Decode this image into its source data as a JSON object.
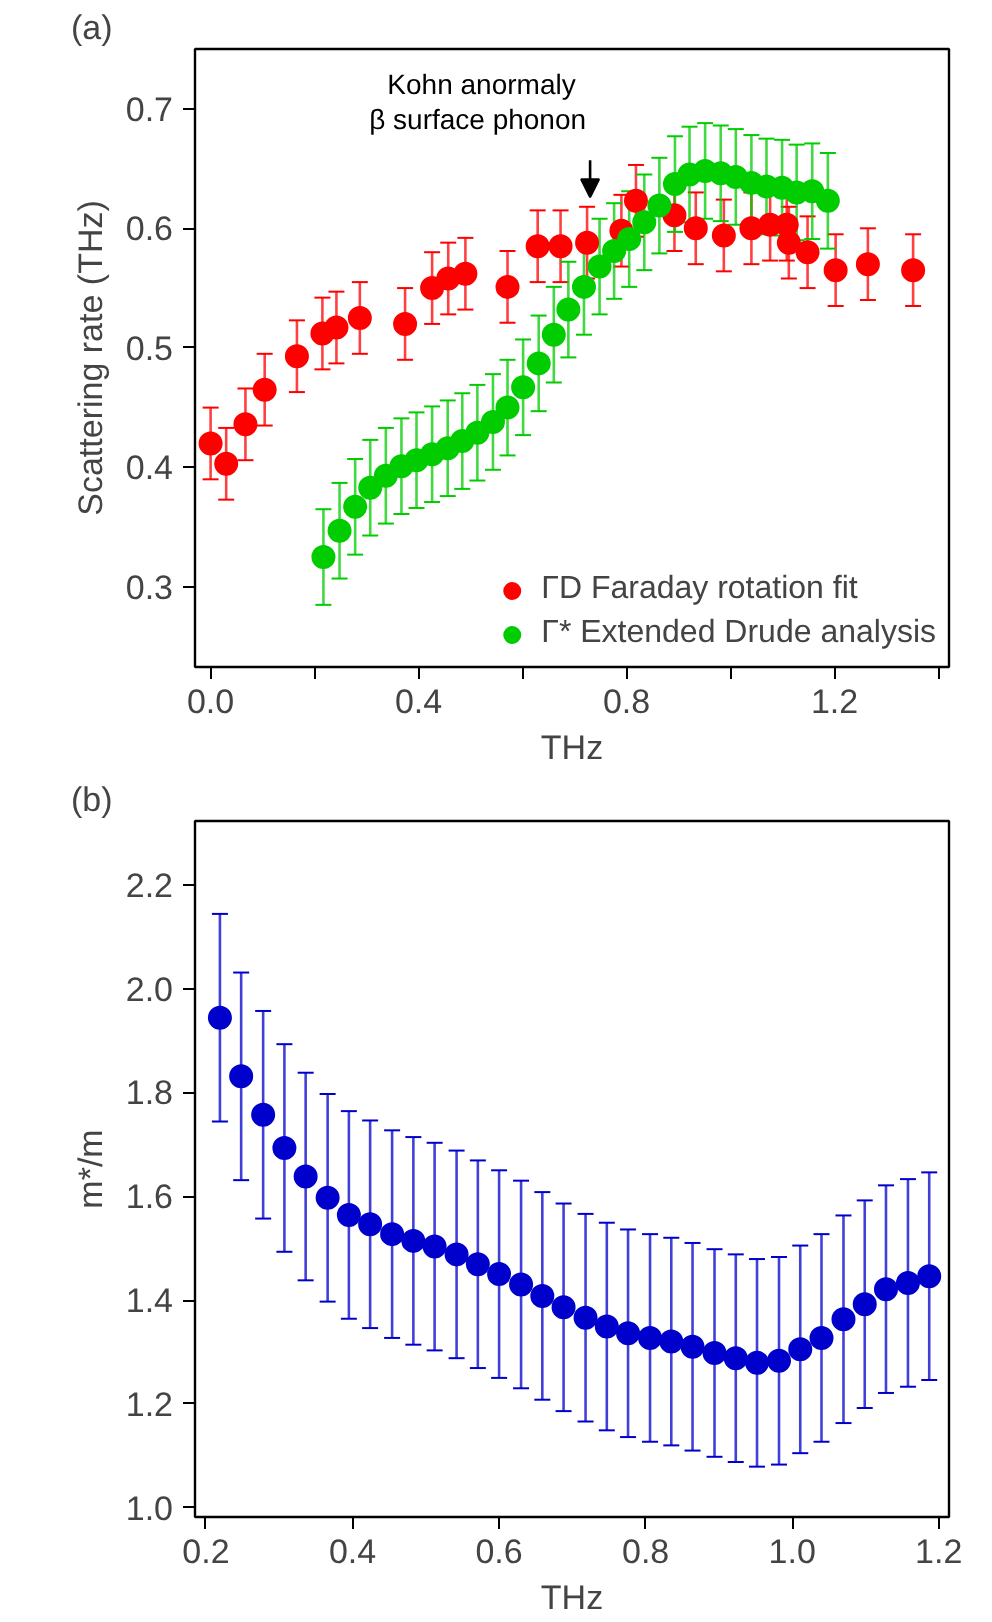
{
  "chart_data": [
    {
      "type": "scatter",
      "title": "(a)",
      "xlabel": "THz",
      "ylabel": "Scattering rate (THz)",
      "xlim": [
        -0.03,
        1.42
      ],
      "ylim": [
        0.233,
        0.75
      ],
      "xticks": [
        {
          "value": 0,
          "label": "0.0"
        },
        {
          "value": 0.2,
          "label": null
        },
        0.4,
        {
          "value": 0.6,
          "label": null
        },
        0.8,
        {
          "value": 1.0,
          "label": null
        },
        1.2,
        {
          "value": 1.4,
          "label": null
        }
      ],
      "yticks": [
        0.3,
        0.4,
        0.5,
        0.6,
        0.7
      ],
      "grid": false,
      "legend": "bottom right",
      "marker": "circle",
      "annotations": [
        "Kohn anormaly\nβ  surface phonon"
      ],
      "series": [
        {
          "name": "ΓD Faraday rotation fit",
          "color": "#ff0000",
          "x": [
            0.0,
            0.03,
            0.067,
            0.104,
            0.166,
            0.215,
            0.242,
            0.287,
            0.374,
            0.426,
            0.457,
            0.49,
            0.571,
            0.629,
            0.673,
            0.724,
            0.79,
            0.818,
            0.892,
            0.933,
            0.987,
            1.04,
            1.076,
            1.108,
            1.112,
            1.148,
            1.202,
            1.264,
            1.351
          ],
          "values": [
            0.42,
            0.403,
            0.436,
            0.465,
            0.493,
            0.512,
            0.517,
            0.525,
            0.52,
            0.55,
            0.558,
            0.562,
            0.551,
            0.585,
            0.585,
            0.588,
            0.598,
            0.623,
            0.611,
            0.6,
            0.594,
            0.6,
            0.603,
            0.603,
            0.588,
            0.58,
            0.565,
            0.57,
            0.565
          ],
          "errors": [
            0.03,
            0.03,
            0.03,
            0.03,
            0.03,
            0.03,
            0.03,
            0.03,
            0.03,
            0.03,
            0.03,
            0.03,
            0.03,
            0.03,
            0.03,
            0.03,
            0.03,
            0.03,
            0.03,
            0.03,
            0.03,
            0.03,
            0.03,
            0.03,
            0.03,
            0.03,
            0.03,
            0.03,
            0.03
          ]
        },
        {
          "name": "Γ* Extended Drude analysis",
          "color": "#00cc00",
          "x": [
            0.217,
            0.248,
            0.278,
            0.307,
            0.337,
            0.367,
            0.396,
            0.426,
            0.456,
            0.484,
            0.513,
            0.543,
            0.571,
            0.601,
            0.631,
            0.66,
            0.688,
            0.718,
            0.748,
            0.776,
            0.805,
            0.834,
            0.863,
            0.893,
            0.921,
            0.951,
            0.981,
            1.01,
            1.04,
            1.069,
            1.099,
            1.127,
            1.157,
            1.187
          ],
          "values": [
            0.325,
            0.347,
            0.367,
            0.383,
            0.393,
            0.401,
            0.406,
            0.411,
            0.416,
            0.422,
            0.429,
            0.438,
            0.45,
            0.467,
            0.487,
            0.511,
            0.532,
            0.551,
            0.568,
            0.581,
            0.591,
            0.605,
            0.619,
            0.637,
            0.645,
            0.648,
            0.646,
            0.643,
            0.638,
            0.635,
            0.634,
            0.63,
            0.631,
            0.623
          ],
          "errors": [
            0.04,
            0.04,
            0.04,
            0.04,
            0.04,
            0.04,
            0.04,
            0.04,
            0.04,
            0.04,
            0.04,
            0.04,
            0.04,
            0.04,
            0.04,
            0.04,
            0.04,
            0.04,
            0.04,
            0.04,
            0.04,
            0.04,
            0.04,
            0.04,
            0.04,
            0.04,
            0.04,
            0.04,
            0.04,
            0.04,
            0.04,
            0.04,
            0.04,
            0.04
          ]
        }
      ]
    },
    {
      "type": "scatter",
      "title": "(b)",
      "xlabel": "THz",
      "ylabel": "m*/m",
      "xlim": [
        0.185,
        1.214
      ],
      "ylim": [
        0.982,
        2.323
      ],
      "xticks": [
        0.2,
        0.4,
        0.6,
        0.8,
        {
          "value": 1.0,
          "label": "1.0"
        },
        1.2
      ],
      "yticks": [
        {
          "value": 1.0,
          "label": "1.0"
        },
        1.2,
        1.4,
        1.6,
        1.8,
        {
          "value": 2.0,
          "label": "2.0"
        },
        2.2
      ],
      "grid": false,
      "marker": "circle",
      "series": [
        {
          "color": "#0000cc",
          "x": [
            0.219,
            0.248,
            0.278,
            0.307,
            0.336,
            0.366,
            0.395,
            0.424,
            0.454,
            0.483,
            0.512,
            0.542,
            0.571,
            0.6,
            0.63,
            0.659,
            0.688,
            0.718,
            0.747,
            0.776,
            0.806,
            0.835,
            0.864,
            0.894,
            0.923,
            0.952,
            0.982,
            1.011,
            1.04,
            1.07,
            1.099,
            1.128,
            1.158,
            1.187
          ],
          "values": [
            1.944,
            1.831,
            1.757,
            1.693,
            1.638,
            1.597,
            1.564,
            1.546,
            1.527,
            1.514,
            1.503,
            1.488,
            1.469,
            1.45,
            1.43,
            1.408,
            1.386,
            1.366,
            1.349,
            1.336,
            1.327,
            1.32,
            1.31,
            1.298,
            1.288,
            1.279,
            1.283,
            1.305,
            1.327,
            1.363,
            1.392,
            1.421,
            1.433,
            1.446
          ],
          "errors": [
            0.2,
            0.2,
            0.2,
            0.2,
            0.2,
            0.2,
            0.2,
            0.2,
            0.2,
            0.2,
            0.2,
            0.2,
            0.2,
            0.2,
            0.2,
            0.2,
            0.2,
            0.2,
            0.2,
            0.2,
            0.2,
            0.2,
            0.2,
            0.2,
            0.2,
            0.2,
            0.2,
            0.2,
            0.2,
            0.2,
            0.2,
            0.2,
            0.2,
            0.2
          ]
        }
      ]
    }
  ]
}
